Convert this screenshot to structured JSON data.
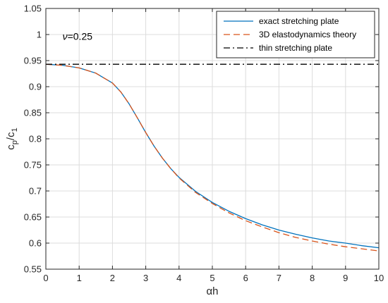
{
  "chart_data": {
    "type": "line",
    "title": "",
    "xlabel_symbol": "α",
    "xlabel_rest": "h",
    "ylabel": {
      "main": "c",
      "sub1": "p",
      "slash": "/c",
      "sub2": "1"
    },
    "xlim": [
      0,
      10
    ],
    "ylim": [
      0.55,
      1.05
    ],
    "grid": true,
    "legend_position": "top-right",
    "annotation": {
      "symbol": "ν",
      "text": "=0.25"
    },
    "x_ticks": [
      0,
      1,
      2,
      3,
      4,
      5,
      6,
      7,
      8,
      9,
      10
    ],
    "x_tick_labels": [
      "0",
      "1",
      "2",
      "3",
      "4",
      "5",
      "6",
      "7",
      "8",
      "9",
      "10"
    ],
    "y_ticks": [
      0.55,
      0.6,
      0.65,
      0.7,
      0.75,
      0.8,
      0.85,
      0.9,
      0.95,
      1,
      1.05
    ],
    "y_tick_labels": [
      "0.55",
      "0.6",
      "0.65",
      "0.7",
      "0.75",
      "0.8",
      "0.85",
      "0.9",
      "0.95",
      "1",
      "1.05"
    ],
    "series": [
      {
        "name": "exact stretching plate",
        "color": "#0072BD",
        "style": "solid",
        "x": [
          0,
          0.5,
          1,
          1.5,
          2,
          2.25,
          2.5,
          2.75,
          3,
          3.25,
          3.5,
          3.75,
          4,
          4.5,
          5,
          5.5,
          6,
          6.5,
          7,
          7.5,
          8,
          8.5,
          9,
          9.5,
          10
        ],
        "y": [
          0.943,
          0.941,
          0.936,
          0.926,
          0.907,
          0.89,
          0.867,
          0.84,
          0.812,
          0.786,
          0.763,
          0.743,
          0.726,
          0.699,
          0.678,
          0.661,
          0.647,
          0.635,
          0.625,
          0.617,
          0.61,
          0.604,
          0.6,
          0.595,
          0.591
        ]
      },
      {
        "name": "3D elastodynamics theory",
        "color": "#D95319",
        "style": "dashed",
        "x": [
          0,
          0.5,
          1,
          1.5,
          2,
          2.25,
          2.5,
          2.75,
          3,
          3.25,
          3.5,
          3.75,
          4,
          4.5,
          5,
          5.5,
          6,
          6.5,
          7,
          7.5,
          8,
          8.5,
          9,
          9.5,
          10
        ],
        "y": [
          0.943,
          0.941,
          0.936,
          0.926,
          0.907,
          0.89,
          0.867,
          0.84,
          0.812,
          0.786,
          0.763,
          0.743,
          0.725,
          0.697,
          0.676,
          0.658,
          0.643,
          0.631,
          0.62,
          0.611,
          0.604,
          0.598,
          0.593,
          0.589,
          0.585
        ]
      },
      {
        "name": "thin stretching plate",
        "color": "#000000",
        "style": "dashdot",
        "x": [
          0,
          10
        ],
        "y": [
          0.943,
          0.943
        ]
      }
    ]
  }
}
